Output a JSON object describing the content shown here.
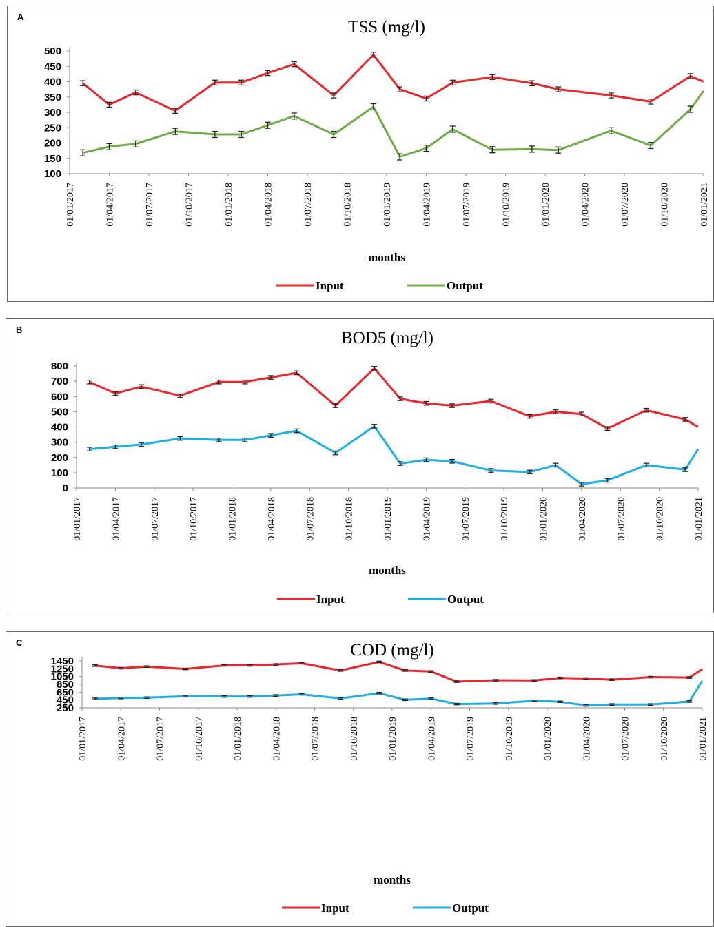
{
  "chart_data": [
    {
      "type": "line",
      "panel": "A",
      "title": "TSS (mg/l)",
      "x_label": "months",
      "legend": "bottom",
      "x": [
        "01/02/2017",
        "01/04/2017",
        "01/06/2017",
        "01/09/2017",
        "01/12/2017",
        "01/02/2018",
        "01/04/2018",
        "01/06/2018",
        "01/09/2018",
        "01/12/2018",
        "01/02/2019",
        "01/04/2019",
        "01/06/2019",
        "01/09/2019",
        "01/12/2019",
        "01/02/2020",
        "01/06/2020",
        "01/09/2020",
        "01/12/2020",
        "01/01/2021"
      ],
      "series": [
        {
          "name": "Input",
          "color": "#e8262b",
          "values": [
            395,
            325,
            365,
            305,
            397,
            397,
            428,
            457,
            355,
            488,
            375,
            345,
            397,
            415,
            395,
            375,
            355,
            335,
            418,
            400
          ],
          "errors": [
            8,
            8,
            8,
            8,
            8,
            8,
            8,
            8,
            8,
            8,
            8,
            8,
            8,
            8,
            8,
            8,
            8,
            8,
            8,
            null
          ]
        },
        {
          "name": "Output",
          "color": "#6cad45",
          "values": [
            168,
            188,
            197,
            238,
            228,
            228,
            258,
            288,
            228,
            318,
            155,
            183,
            245,
            178,
            180,
            177,
            240,
            192,
            310,
            370
          ],
          "errors": [
            10,
            10,
            10,
            10,
            10,
            10,
            10,
            10,
            10,
            10,
            10,
            10,
            10,
            10,
            10,
            10,
            10,
            10,
            10,
            null
          ]
        }
      ],
      "xlim": [
        "01/01/2017",
        "01/01/2021"
      ],
      "xticks": [
        "01/01/2017",
        "01/04/2017",
        "01/07/2017",
        "01/10/2017",
        "01/01/2018",
        "01/04/2018",
        "01/07/2018",
        "01/10/2018",
        "01/01/2019",
        "01/04/2019",
        "01/07/2019",
        "01/10/2019",
        "01/01/2020",
        "01/04/2020",
        "01/07/2020",
        "01/10/2020",
        "01/01/2021"
      ],
      "ylim": [
        100,
        500
      ],
      "yticks": [
        100,
        150,
        200,
        250,
        300,
        350,
        400,
        450,
        500
      ]
    },
    {
      "type": "line",
      "panel": "B",
      "title": "BOD5 (mg/l)",
      "x_label": "months",
      "legend": "bottom",
      "x": [
        "01/02/2017",
        "01/04/2017",
        "01/06/2017",
        "01/09/2017",
        "01/12/2017",
        "01/02/2018",
        "01/04/2018",
        "01/06/2018",
        "01/09/2018",
        "01/12/2018",
        "01/02/2019",
        "01/04/2019",
        "01/06/2019",
        "01/09/2019",
        "01/12/2019",
        "01/02/2020",
        "01/04/2020",
        "01/06/2020",
        "01/09/2020",
        "01/12/2020",
        "01/01/2021"
      ],
      "series": [
        {
          "name": "Input",
          "color": "#e8262b",
          "values": [
            695,
            620,
            665,
            605,
            695,
            695,
            725,
            755,
            540,
            785,
            585,
            555,
            540,
            570,
            470,
            500,
            485,
            390,
            510,
            450,
            400
          ],
          "errors": [
            12,
            12,
            12,
            12,
            12,
            12,
            12,
            12,
            12,
            12,
            12,
            12,
            12,
            12,
            12,
            12,
            12,
            12,
            12,
            12,
            null
          ]
        },
        {
          "name": "Output",
          "color": "#1eaee6",
          "values": [
            255,
            270,
            285,
            325,
            315,
            315,
            345,
            375,
            230,
            405,
            160,
            185,
            175,
            115,
            105,
            150,
            25,
            50,
            150,
            120,
            255
          ],
          "errors": [
            12,
            12,
            12,
            12,
            12,
            12,
            12,
            12,
            12,
            12,
            12,
            12,
            12,
            12,
            12,
            12,
            12,
            12,
            12,
            12,
            null
          ]
        }
      ],
      "xlim": [
        "01/01/2017",
        "01/01/2021"
      ],
      "xticks": [
        "01/01/2017",
        "01/04/2017",
        "01/07/2017",
        "01/10/2017",
        "01/01/2018",
        "01/04/2018",
        "01/07/2018",
        "01/10/2018",
        "01/01/2019",
        "01/04/2019",
        "01/07/2019",
        "01/10/2019",
        "01/01/2020",
        "01/04/2020",
        "01/07/2020",
        "01/10/2020",
        "01/01/2021"
      ],
      "ylim": [
        0,
        800
      ],
      "yticks": [
        0,
        100,
        200,
        300,
        400,
        500,
        600,
        700,
        800
      ]
    },
    {
      "type": "line",
      "panel": "C",
      "title": "COD (mg/l)",
      "x_label": "months",
      "legend": "bottom",
      "x": [
        "01/02/2017",
        "01/04/2017",
        "01/06/2017",
        "01/09/2017",
        "01/12/2017",
        "01/02/2018",
        "01/04/2018",
        "01/06/2018",
        "01/09/2018",
        "01/12/2018",
        "01/02/2019",
        "01/04/2019",
        "01/06/2019",
        "01/09/2019",
        "01/12/2019",
        "01/02/2020",
        "01/04/2020",
        "01/06/2020",
        "01/09/2020",
        "01/12/2020",
        "01/01/2021"
      ],
      "series": [
        {
          "name": "Input",
          "color": "#e8262b",
          "values": [
            1330,
            1265,
            1305,
            1245,
            1335,
            1335,
            1360,
            1390,
            1205,
            1425,
            1205,
            1180,
            920,
            955,
            950,
            1015,
            1000,
            970,
            1035,
            1025,
            1240
          ],
          "errors": [
            20,
            20,
            20,
            20,
            20,
            20,
            20,
            20,
            20,
            20,
            20,
            20,
            20,
            20,
            20,
            20,
            20,
            20,
            20,
            20,
            null
          ]
        },
        {
          "name": "Output",
          "color": "#1eaee6",
          "values": [
            480,
            500,
            510,
            545,
            540,
            540,
            565,
            595,
            490,
            625,
            455,
            485,
            345,
            360,
            430,
            405,
            310,
            335,
            335,
            410,
            940
          ],
          "errors": [
            20,
            20,
            20,
            20,
            20,
            20,
            20,
            20,
            20,
            20,
            20,
            20,
            20,
            20,
            20,
            20,
            20,
            20,
            20,
            20,
            null
          ]
        }
      ],
      "xlim": [
        "01/01/2017",
        "01/01/2021"
      ],
      "xticks": [
        "01/01/2017",
        "01/04/2017",
        "01/07/2017",
        "01/10/2017",
        "01/01/2018",
        "01/04/2018",
        "01/07/2018",
        "01/10/2018",
        "01/01/2019",
        "01/04/2019",
        "01/07/2019",
        "01/10/2019",
        "01/01/2020",
        "01/04/2020",
        "01/07/2020",
        "01/10/2020",
        "01/01/2021"
      ],
      "ylim": [
        250,
        1450
      ],
      "yticks": [
        250,
        450,
        650,
        850,
        1050,
        1250,
        1450
      ]
    }
  ]
}
